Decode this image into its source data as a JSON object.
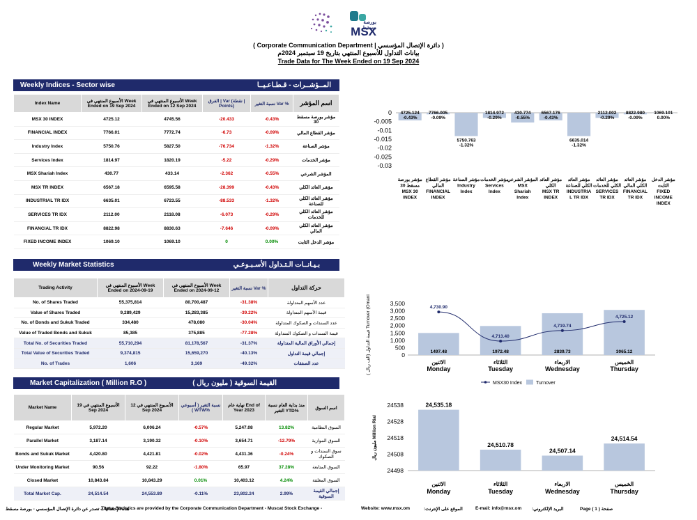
{
  "header": {
    "logo_ar": "بورصة مسقط",
    "logo_en": "MSX",
    "dept": "( Corporate Communication Department |  دائرة الإتصال المؤسسي )",
    "title_ar": "بيانات التداول للأسبوع المنتهي بتاريخ 19 سبتمبر  2024م",
    "title_en": "Trade Data for The Week Ended on 19 Sep 2024"
  },
  "indices": {
    "title_en": "Weekly Indices - Sector wise",
    "title_ar": "المــؤشــرات - قـطـاعـيــا",
    "columns": [
      "Index Name",
      "الأسبوع المنتهي في Week Ended on 19 Sep 2024",
      "الأسبوع المنتهي في Week Ended on 12 Sep 2024",
      "الفرق | Var (نقطة | Points)",
      "نسبة التغير Var %",
      "اسم المؤشر"
    ],
    "rows": [
      {
        "name": "MSX 30 INDEX",
        "cur": "4725.12",
        "prev": "4745.56",
        "var": "-20.433",
        "pct": "-0.43%",
        "ar": "مؤشر بورصة مسقط 30"
      },
      {
        "name": "FINANCIAL INDEX",
        "cur": "7766.01",
        "prev": "7772.74",
        "var": "-6.73",
        "pct": "-0.09%",
        "ar": "مؤشر القطاع المالي"
      },
      {
        "name": "Industry Index",
        "cur": "5750.76",
        "prev": "5827.50",
        "var": "-76.734",
        "pct": "-1.32%",
        "ar": "مؤشر الصناعة"
      },
      {
        "name": "Services Index",
        "cur": "1814.97",
        "prev": "1820.19",
        "var": "-5.22",
        "pct": "-0.29%",
        "ar": "مؤشر الخدمات"
      },
      {
        "name": "MSX Shariah Index",
        "cur": "430.77",
        "prev": "433.14",
        "var": "-2.362",
        "pct": "-0.55%",
        "ar": "المؤشر الشرعي"
      },
      {
        "name": "MSX TR INDEX",
        "cur": "6567.18",
        "prev": "6595.58",
        "var": "-28.399",
        "pct": "-0.43%",
        "ar": "مؤشر العائد الكلي"
      },
      {
        "name": "INDUSTRIAL TR IDX",
        "cur": "6635.01",
        "prev": "6723.55",
        "var": "-88.533",
        "pct": "-1.32%",
        "ar": "مؤشر العائد الكلي للصناعة"
      },
      {
        "name": "SERVICES TR IDX",
        "cur": "2112.00",
        "prev": "2118.08",
        "var": "-6.073",
        "pct": "-0.29%",
        "ar": "مؤشر العائد الكلي للخدمات"
      },
      {
        "name": "FINANCIAL TR IDX",
        "cur": "8822.98",
        "prev": "8830.63",
        "var": "-7.646",
        "pct": "-0.09%",
        "ar": "مؤشر العائد الكلي المالي"
      },
      {
        "name": "FIXED INCOME INDEX",
        "cur": "1069.10",
        "prev": "1069.10",
        "var": "0",
        "pct": "0.00%",
        "ar": "مؤشر الدخل الثابت"
      }
    ]
  },
  "market": {
    "title_en": "Weekly Market Statistics",
    "title_ar": "بـيـانــات الـتـداول الأسـبـوعـي",
    "columns": [
      "Trading Activity",
      "الأسبوع المنتهي في Week Ended on 2024-09-19",
      "الأسبوع المنتهي في Week Ended on 2024-09-12",
      "نسبة التغير Var %",
      "حركة التداول"
    ],
    "rows": [
      {
        "name": "No. of Shares Traded",
        "cur": "55,375,814",
        "prev": "80,700,487",
        "pct": "-31.38%",
        "ar": "عدد الأسهم المتداولة",
        "total": false
      },
      {
        "name": "Value of Shares Traded",
        "cur": "9,289,429",
        "prev": "15,283,385",
        "pct": "-39.22%",
        "ar": "قيمة الأسهم المتداولة",
        "total": false
      },
      {
        "name": "No. of Bonds and Sukuk Traded",
        "cur": "334,480",
        "prev": "478,080",
        "pct": "-30.04%",
        "ar": "عدد السندات و الصكوك المتداولة",
        "total": false
      },
      {
        "name": "Value of Traded Bonds and Sukuk",
        "cur": "85,385",
        "prev": "375,885",
        "pct": "-77.28%",
        "ar": "قيمة السندات و الصكوك المتداولة",
        "total": false
      },
      {
        "name": "Total No. of Securities Traded",
        "cur": "55,710,294",
        "prev": "81,178,567",
        "pct": "-31.37%",
        "ar": "إجمالي الأوراق المالية المتداولة",
        "total": true
      },
      {
        "name": "Total Value of Securities Traded",
        "cur": "9,374,815",
        "prev": "15,659,270",
        "pct": "-40.13%",
        "ar": "إجمالي قيمة التداول",
        "total": true
      },
      {
        "name": "No. of Trades",
        "cur": "1,606",
        "prev": "3,169",
        "pct": "-49.32%",
        "ar": "عدد الصفقات",
        "total": true
      }
    ]
  },
  "capitalization": {
    "title_en": "Market  Capitalization  ( Million R.O )",
    "title_ar": "القيمة السوقية ( مليون ريال )",
    "columns": [
      "Market Name",
      "الأسبوع المنتهي في 19 Sep 2024",
      "الأسبوع المنتهي في 12 Sep 2024",
      "نسبة التغير ( أسبوعي ) WTW%",
      "نهاية عام End of Year 2023",
      "منذ بداية العام نسبة التغير YTD%",
      "اسم السوق"
    ],
    "rows": [
      {
        "name": "Regular Market",
        "cur": "5,972.20",
        "prev": "6,006.24",
        "wtw": "-0.57%",
        "eoy": "5,247.08",
        "ytd": "13.82%",
        "ar": "السوق النظامية",
        "total": false
      },
      {
        "name": "Parallel Market",
        "cur": "3,187.14",
        "prev": "3,190.32",
        "wtw": "-0.10%",
        "eoy": "3,654.71",
        "ytd": "-12.79%",
        "ar": "السوق الموازية",
        "total": false
      },
      {
        "name": "Bonds and Sukuk Market",
        "cur": "4,420.80",
        "prev": "4,421.81",
        "wtw": "-0.02%",
        "eoy": "4,431.36",
        "ytd": "-0.24%",
        "ar": "سوق السندات و الصكوك",
        "total": false
      },
      {
        "name": "Under Monitoring Market",
        "cur": "90.56",
        "prev": "92.22",
        "wtw": "-1.80%",
        "eoy": "65.97",
        "ytd": "37.28%",
        "ar": "السوق المتابعة",
        "total": false
      },
      {
        "name": "Closed Market",
        "cur": "10,843.84",
        "prev": "10,843.29",
        "wtw": "0.01%",
        "eoy": "10,403.12",
        "ytd": "4.24%",
        "ar": "السوق المغلقة",
        "total": false
      },
      {
        "name": "Total Market Cap.",
        "cur": "24,514.54",
        "prev": "24,553.89",
        "wtw": "-0.11%",
        "eoy": "23,802.24",
        "ytd": "2.99%",
        "ar": "إجمالي القيمة السوقية",
        "total": true
      }
    ]
  },
  "chart_data": [
    {
      "type": "bar",
      "categories": [
        "مؤشر بورصة مسقط 30 MSX 30 INDEX",
        "مؤشر القطاع المالي FINANCIAL INDEX",
        "مؤشر الصناعة Industry Index",
        "مؤشر الخدمات Services Index",
        "المؤشر الشرعي MSX Shariah Index",
        "مؤشر العائد الكلي MSX TR INDEX",
        "مؤشر العائد الكلي للصناعة INDUSTRIAL TR IDX",
        "مؤشر العائد الكلي للخدمات SERVICES TR IDX",
        "مؤشر العائد الكلي المالي FINANCIAL TR IDX",
        "مؤشر الدخل الثابت FIXED INCOME INDEX"
      ],
      "cat_lines": [
        [
          "مؤشر بورصة",
          "مسقط 30",
          "MSX 30",
          "INDEX"
        ],
        [
          "مؤشر القطاع",
          "المالي",
          "FINANCIAL",
          "INDEX"
        ],
        [
          "مؤشر الصناعة",
          "Industry",
          "Index"
        ],
        [
          "مؤشر الخدمات",
          "Services",
          "Index"
        ],
        [
          "المؤشر الشرعي",
          "MSX",
          "Shariah",
          "Index"
        ],
        [
          "مؤشر العائد",
          "الكلي",
          "MSX TR",
          "INDEX"
        ],
        [
          "مؤشر العائد",
          "الكلي للصناعة",
          "INDUSTRIA",
          "L TR IDX"
        ],
        [
          "مؤشر العائد",
          "الكلي للخدمات",
          "SERVICES",
          "TR IDX"
        ],
        [
          "مؤشر العائد",
          "الكلي المالي",
          "FINANCIAL",
          "TR IDX"
        ],
        [
          "مؤشر الدخل",
          "الثابت",
          "FIXED",
          "INCOME",
          "INDEX"
        ]
      ],
      "values": [
        -0.0043,
        -0.0009,
        -0.0132,
        -0.0029,
        -0.0055,
        -0.0043,
        -0.0132,
        -0.0029,
        -0.0009,
        0.0
      ],
      "labels": [
        [
          "4725.124",
          "-0.43%"
        ],
        [
          "7766.005",
          "-0.09%"
        ],
        [
          "5750.763",
          "-1.32%"
        ],
        [
          "1814.972",
          "-0.29%"
        ],
        [
          "430.774",
          "-0.55%"
        ],
        [
          "6567.176",
          "-0.43%"
        ],
        [
          "6635.014",
          "-1.32%"
        ],
        [
          "2112.002",
          "-0.29%"
        ],
        [
          "8822.980",
          "-0.09%"
        ],
        [
          "1069.101",
          "0.00%"
        ]
      ],
      "ylim": [
        -0.03,
        0
      ],
      "yticks": [
        "0",
        "-0.005",
        "-0.01",
        "-0.015",
        "-0.02",
        "-0.025",
        "-0.03"
      ],
      "bar_color": "#b8c7de"
    },
    {
      "type": "bar+line",
      "categories": [
        "الاثنين Monday",
        "الثلاثاء Tuesday",
        "الاربعاء Wednesday",
        "الخميس Thursday"
      ],
      "cat_ar": [
        "الاثنين",
        "الثلاثاء",
        "الاربعاء",
        "الخميس"
      ],
      "cat_en": [
        "Monday",
        "Tuesday",
        "Wednesday",
        "Thursday"
      ],
      "series": [
        {
          "name": "Turnover",
          "type": "bar",
          "values": [
            1497.48,
            1972.48,
            2839.73,
            3065.12
          ],
          "labels": [
            "1497.48",
            "1972.48",
            "2839.73",
            "3065.12"
          ]
        },
        {
          "name": "MSX30 Index",
          "type": "line",
          "values": [
            4730.9,
            4713.4,
            4719.74,
            4725.12
          ],
          "labels": [
            "4,730.90",
            "4,713.40",
            "4,719.74",
            "4,725.12"
          ]
        }
      ],
      "ylabel": "( قيمة التداول (الف ريال Turnover (Omani rial...",
      "ylim": [
        0,
        3500
      ],
      "yticks": [
        "3,500",
        "3,000",
        "2,500",
        "2,000",
        "1,500",
        "1,000",
        "500",
        "0"
      ],
      "line_ylim": [
        4705,
        4736
      ],
      "legend_line": "MSX30 Index",
      "legend_bar": "Turnover",
      "bar_color": "#b8c7de",
      "line_color": "#1f2a6b"
    },
    {
      "type": "bar",
      "categories": [
        "الاثنين Monday",
        "الثلاثاء Tuesday",
        "الاربعاء Wednesday",
        "الخميس Thursday"
      ],
      "cat_ar": [
        "الاثنين",
        "الثلاثاء",
        "الاربعاء",
        "الخميس"
      ],
      "cat_en": [
        "Monday",
        "Tuesday",
        "Wednesday",
        "Thursday"
      ],
      "values": [
        24535.18,
        24510.78,
        24507.14,
        24514.54
      ],
      "labels": [
        "24,535.18",
        "24,510.78",
        "24,507.14",
        "24,514.54"
      ],
      "ylabel": "مليون ريال Million Rial",
      "ylim": [
        24498,
        24538
      ],
      "yticks": [
        "24538",
        "24528",
        "24518",
        "24508",
        "24498"
      ],
      "bar_color": "#b8c7de"
    }
  ],
  "footer": {
    "left_ar": "هذه الإحصائيات تصدر عن دائرة الإتصال المؤسسي - بورصة مسقط",
    "left_en": "These Statistics are provided by the Corporate Communication Department - Muscat Stock Exchange -",
    "web_en": "Website: www.msx.om",
    "web_ar": "الموقع على الإنترنت:",
    "email_en": "E-mail: info@msx.om",
    "email_ar": "البريد الإلكتروني:",
    "page": "Page ( 1 ) صفحة"
  }
}
